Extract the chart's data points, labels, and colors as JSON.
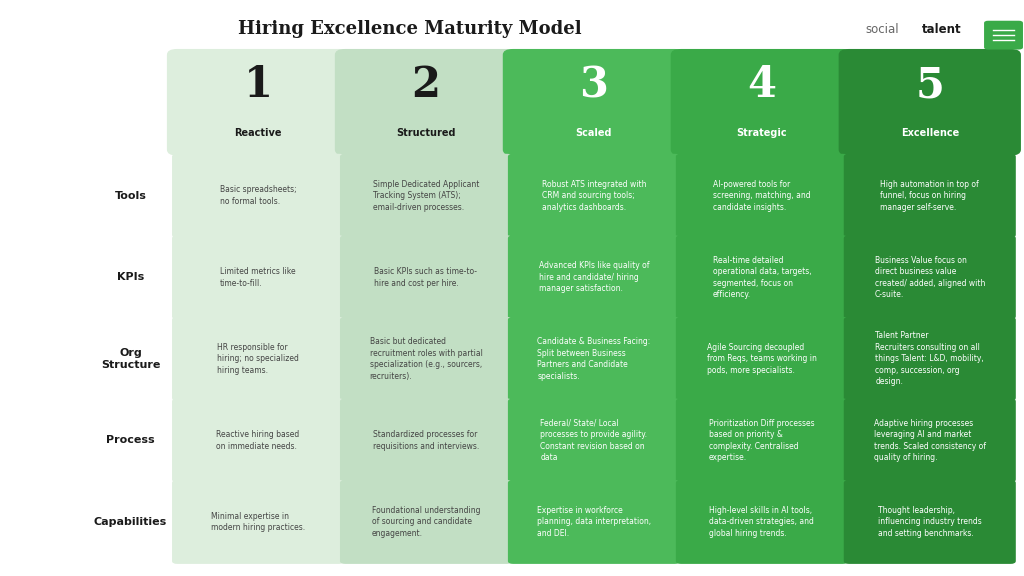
{
  "title": "Hiring Excellence Maturity Model",
  "background_color": "#ffffff",
  "title_color": "#1a1a1a",
  "title_fontsize": 13,
  "row_labels": [
    "Tools",
    "KPIs",
    "Org\nStructure",
    "Process",
    "Capabilities"
  ],
  "col_numbers": [
    "1",
    "2",
    "3",
    "4",
    "5"
  ],
  "col_labels": [
    "Reactive",
    "Structured",
    "Scaled",
    "Strategic",
    "Excellence"
  ],
  "col_colors": [
    "#ddeedd",
    "#c2dfc4",
    "#4cba5a",
    "#3aaa48",
    "#2a8a35"
  ],
  "col_header_text_colors": [
    "#1a1a1a",
    "#1a1a1a",
    "#ffffff",
    "#ffffff",
    "#ffffff"
  ],
  "col_number_colors": [
    "#1a1a1a",
    "#1a1a1a",
    "#ffffff",
    "#ffffff",
    "#ffffff"
  ],
  "cell_text_colors": [
    "#444444",
    "#444444",
    "#ffffff",
    "#ffffff",
    "#ffffff"
  ],
  "row_label_color": "#1a1a1a",
  "cells": [
    [
      "Basic spreadsheets;\nno formal tools.",
      "Simple Dedicated Applicant\nTracking System (ATS);\nemail-driven processes.",
      "Robust ATS integrated with\nCRM and sourcing tools;\nanalytics dashboards.",
      "AI-powered tools for\nscreening, matching, and\ncandidate insights.",
      "High automation in top of\nfunnel, focus on hiring\nmanager self-serve."
    ],
    [
      "Limited metrics like\ntime-to-fill.",
      "Basic KPIs such as time-to-\nhire and cost per hire.",
      "Advanced KPIs like quality of\nhire and candidate/ hiring\nmanager satisfaction.",
      "Real-time detailed\noperational data, targets,\nsegmented, focus on\nefficiency.",
      "Business Value focus on\ndirect business value\ncreated/ added, aligned with\nC-suite."
    ],
    [
      "HR responsible for\nhiring; no specialized\nhiring teams.",
      "Basic but dedicated\nrecruitment roles with partial\nspecialization (e.g., sourcers,\nrecruiters).",
      "Candidate & Business Facing:\nSplit between Business\nPartners and Candidate\nspecialists.",
      "Agile Sourcing decoupled\nfrom Reqs, teams working in\npods, more specialists.",
      "Talent Partner\nRecruiters consulting on all\nthings Talent: L&D, mobility,\ncomp, succession, org\ndesign."
    ],
    [
      "Reactive hiring based\non immediate needs.",
      "Standardized processes for\nrequisitions and interviews.",
      "Federal/ State/ Local\nprocesses to provide agility.\nConstant revision based on\ndata",
      "Prioritization Diff processes\nbased on priority &\ncomplexity. Centralised\nexpertise.",
      "Adaptive hiring processes\nleveraging AI and market\ntrends. Scaled consistency of\nquality of hiring."
    ],
    [
      "Minimal expertise in\nmodern hiring practices.",
      "Foundational understanding\nof sourcing and candidate\nengagement.",
      "Expertise in workforce\nplanning, data interpretation,\nand DEI.",
      "High-level skills in AI tools,\ndata-driven strategies, and\nglobal hiring trends.",
      "Thought leadership,\ninfluencing industry trends\nand setting benchmarks."
    ]
  ],
  "logo_green_color": "#3aaa48",
  "logo_text_color_social": "#666666",
  "logo_text_color_talent": "#1a1a1a"
}
